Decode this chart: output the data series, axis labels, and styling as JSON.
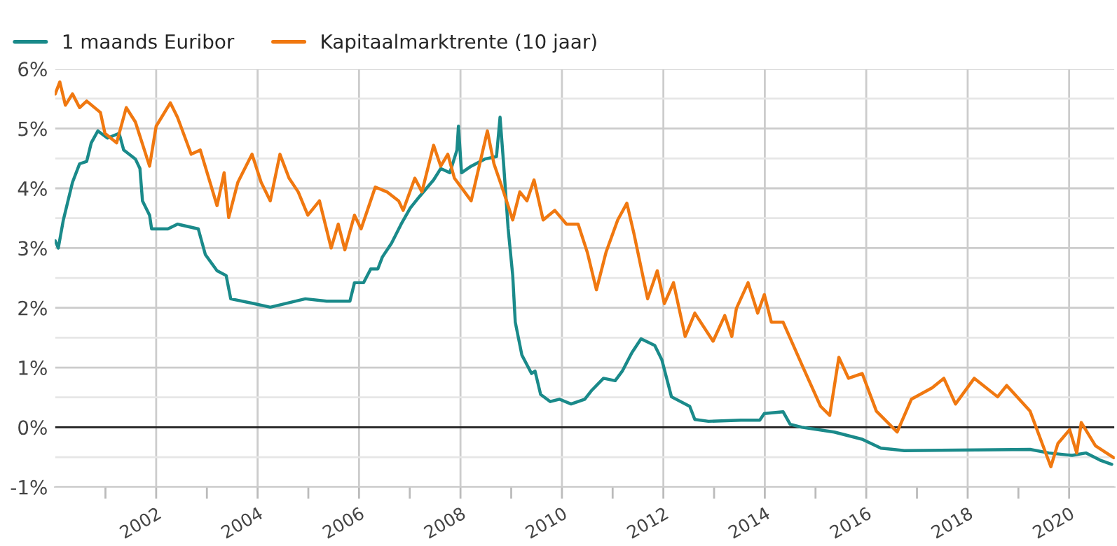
{
  "chart_data": {
    "type": "line",
    "series": [
      {
        "name": "1 maands Euribor",
        "color": "#1a8a8a",
        "x": [
          2000.01,
          2000.07,
          2000.17,
          2000.35,
          2000.49,
          2000.63,
          2000.72,
          2000.85,
          2001.04,
          2001.27,
          2001.36,
          2001.59,
          2001.68,
          2001.73,
          2001.87,
          2001.91,
          2002.23,
          2002.42,
          2002.83,
          2002.97,
          2003.2,
          2003.38,
          2003.47,
          2003.93,
          2004.25,
          2004.94,
          2005.36,
          2005.82,
          2005.91,
          2006.09,
          2006.23,
          2006.37,
          2006.46,
          2006.64,
          2006.83,
          2007.01,
          2007.19,
          2007.47,
          2007.61,
          2007.79,
          2007.93,
          2007.96,
          2008.02,
          2008.21,
          2008.48,
          2008.71,
          2008.78,
          2008.85,
          2008.94,
          2009.03,
          2009.08,
          2009.21,
          2009.4,
          2009.47,
          2009.58,
          2009.77,
          2009.95,
          2010.18,
          2010.45,
          2010.59,
          2010.82,
          2011.05,
          2011.19,
          2011.38,
          2011.56,
          2011.83,
          2011.97,
          2012.16,
          2012.52,
          2012.62,
          2012.89,
          2013.53,
          2013.9,
          2013.99,
          2014.36,
          2014.5,
          2014.73,
          2015.37,
          2015.92,
          2016.29,
          2016.75,
          2019.23,
          2019.6,
          2020.06,
          2020.33,
          2020.61,
          2020.84
        ],
        "values": [
          3.12,
          3.0,
          3.47,
          4.1,
          4.41,
          4.45,
          4.76,
          4.96,
          4.84,
          4.92,
          4.64,
          4.49,
          4.33,
          3.79,
          3.55,
          3.32,
          3.32,
          3.4,
          3.32,
          2.89,
          2.62,
          2.54,
          2.15,
          2.07,
          2.01,
          2.15,
          2.11,
          2.11,
          2.42,
          2.42,
          2.65,
          2.65,
          2.85,
          3.08,
          3.4,
          3.67,
          3.86,
          4.14,
          4.33,
          4.26,
          4.64,
          5.04,
          4.26,
          4.37,
          4.49,
          4.53,
          5.19,
          4.41,
          3.32,
          2.54,
          1.76,
          1.21,
          0.9,
          0.94,
          0.55,
          0.43,
          0.47,
          0.39,
          0.47,
          0.62,
          0.82,
          0.78,
          0.94,
          1.25,
          1.48,
          1.37,
          1.13,
          0.51,
          0.35,
          0.13,
          0.1,
          0.12,
          0.12,
          0.23,
          0.26,
          0.05,
          0.0,
          -0.08,
          -0.2,
          -0.35,
          -0.39,
          -0.37,
          -0.43,
          -0.47,
          -0.43,
          -0.55,
          -0.62
        ]
      },
      {
        "name": "Kapitaalmarktrente (10 jaar)",
        "color": "#f07810",
        "x": [
          2000.01,
          2000.1,
          2000.21,
          2000.35,
          2000.49,
          2000.63,
          2000.9,
          2000.99,
          2001.22,
          2001.41,
          2001.59,
          2001.87,
          2002.0,
          2002.28,
          2002.42,
          2002.69,
          2002.87,
          2003.2,
          2003.34,
          2003.43,
          2003.61,
          2003.89,
          2004.07,
          2004.25,
          2004.44,
          2004.62,
          2004.8,
          2004.99,
          2005.22,
          2005.45,
          2005.59,
          2005.72,
          2005.91,
          2006.04,
          2006.32,
          2006.55,
          2006.78,
          2006.87,
          2007.1,
          2007.24,
          2007.47,
          2007.61,
          2007.75,
          2007.88,
          2008.21,
          2008.53,
          2008.66,
          2008.85,
          2009.03,
          2009.17,
          2009.31,
          2009.45,
          2009.63,
          2009.86,
          2010.09,
          2010.32,
          2010.5,
          2010.68,
          2010.87,
          2011.1,
          2011.28,
          2011.42,
          2011.69,
          2011.88,
          2012.02,
          2012.2,
          2012.43,
          2012.62,
          2012.98,
          2013.21,
          2013.35,
          2013.44,
          2013.67,
          2013.86,
          2013.99,
          2014.13,
          2014.36,
          2014.73,
          2015.1,
          2015.28,
          2015.46,
          2015.65,
          2015.92,
          2016.2,
          2016.61,
          2016.89,
          2017.3,
          2017.53,
          2017.76,
          2018.13,
          2018.59,
          2018.77,
          2019.23,
          2019.64,
          2019.78,
          2020.01,
          2020.15,
          2020.24,
          2020.52,
          2020.88
        ],
        "values": [
          5.58,
          5.78,
          5.39,
          5.58,
          5.35,
          5.46,
          5.27,
          4.92,
          4.76,
          5.35,
          5.11,
          4.37,
          5.04,
          5.43,
          5.19,
          4.57,
          4.64,
          3.71,
          4.26,
          3.51,
          4.1,
          4.57,
          4.1,
          3.79,
          4.57,
          4.17,
          3.94,
          3.55,
          3.79,
          3.0,
          3.4,
          2.97,
          3.55,
          3.32,
          4.02,
          3.94,
          3.79,
          3.63,
          4.17,
          3.94,
          4.72,
          4.37,
          4.57,
          4.17,
          3.79,
          4.96,
          4.41,
          3.94,
          3.47,
          3.94,
          3.79,
          4.14,
          3.47,
          3.63,
          3.4,
          3.4,
          2.93,
          2.3,
          2.93,
          3.47,
          3.75,
          3.24,
          2.15,
          2.62,
          2.07,
          2.42,
          1.52,
          1.91,
          1.44,
          1.87,
          1.52,
          1.99,
          2.42,
          1.91,
          2.22,
          1.76,
          1.76,
          1.05,
          0.35,
          0.2,
          1.17,
          0.82,
          0.9,
          0.27,
          -0.08,
          0.47,
          0.66,
          0.82,
          0.39,
          0.82,
          0.51,
          0.7,
          0.27,
          -0.66,
          -0.27,
          -0.04,
          -0.43,
          0.08,
          -0.31,
          -0.51
        ]
      }
    ],
    "xlim": [
      2000,
      2020.9
    ],
    "xticks": [
      {
        "value": 2001,
        "label": null
      },
      2002,
      {
        "value": 2003,
        "label": null
      },
      2004,
      {
        "value": 2005,
        "label": null
      },
      2006,
      {
        "value": 2007,
        "label": null
      },
      2008,
      {
        "value": 2009,
        "label": null
      },
      2010,
      {
        "value": 2011,
        "label": null
      },
      2012,
      {
        "value": 2013,
        "label": null
      },
      2014,
      {
        "value": 2015,
        "label": null
      },
      2016,
      {
        "value": 2017,
        "label": null
      },
      2018,
      {
        "value": 2019,
        "label": null
      },
      2020
    ],
    "ylim": [
      -1,
      6
    ],
    "yticks": [
      {
        "value": -1,
        "label": "-1%"
      },
      {
        "value": -0.5,
        "label": null
      },
      {
        "value": 0,
        "label": "0%"
      },
      {
        "value": 0.5,
        "label": null
      },
      {
        "value": 1,
        "label": "1%"
      },
      {
        "value": 1.5,
        "label": null
      },
      {
        "value": 2,
        "label": "2%"
      },
      {
        "value": 2.5,
        "label": null
      },
      {
        "value": 3,
        "label": "3%"
      },
      {
        "value": 3.5,
        "label": null
      },
      {
        "value": 4,
        "label": "4%"
      },
      {
        "value": 4.5,
        "label": null
      },
      {
        "value": 5,
        "label": "5%"
      },
      {
        "value": 5.5,
        "label": null
      },
      {
        "value": 6,
        "label": "6%"
      }
    ],
    "ref_lines": [
      {
        "axis": "y",
        "value": 0,
        "color": "#222222"
      }
    ],
    "grid": true,
    "legend": "top left",
    "line_style": "solid",
    "marker": "none"
  }
}
